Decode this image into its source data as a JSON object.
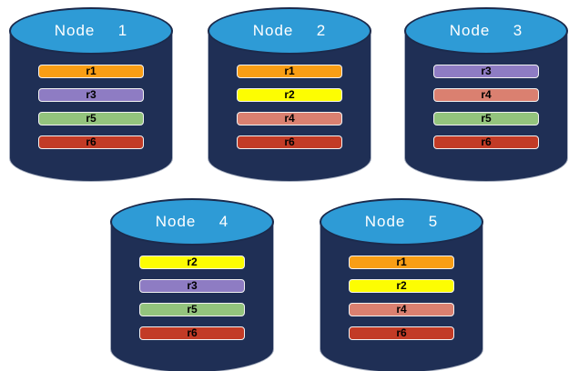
{
  "diagram": {
    "description": "Five database nodes with replica assignments",
    "nodes": [
      {
        "label": "Node  1",
        "replicas": [
          "r1",
          "r3",
          "r5",
          "r6"
        ]
      },
      {
        "label": "Node  2",
        "replicas": [
          "r1",
          "r2",
          "r4",
          "r6"
        ]
      },
      {
        "label": "Node  3",
        "replicas": [
          "r3",
          "r4",
          "r5",
          "r6"
        ]
      },
      {
        "label": "Node  4",
        "replicas": [
          "r2",
          "r3",
          "r5",
          "r6"
        ]
      },
      {
        "label": "Node  5",
        "replicas": [
          "r1",
          "r2",
          "r4",
          "r6"
        ]
      }
    ],
    "replica_colors": {
      "r1": "#F99E15",
      "r2": "#FDFD02",
      "r3": "#8E7CC3",
      "r4": "#DA8070",
      "r5": "#93C47D",
      "r6": "#C23B26"
    },
    "colors": {
      "background": "#FFFFFF",
      "cylinder_body": "#1F2F55",
      "cylinder_top": "#2E9BD6",
      "cylinder_outline": "#1B2A4C",
      "bar_border": "#F2F2F2",
      "bar_text": "#000000",
      "node_label_text": "#FFFFFF"
    }
  }
}
